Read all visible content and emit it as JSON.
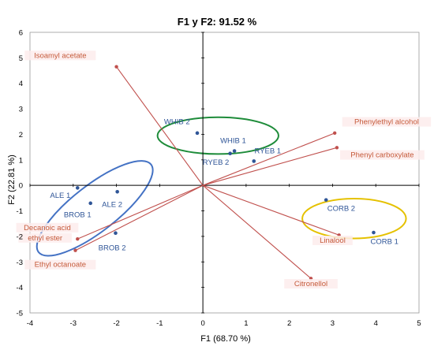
{
  "chart_data": {
    "type": "scatter",
    "title": "F1 y F2: 91.52 %",
    "xlabel": "F1 (68.70 %)",
    "ylabel": "F2 (22.81 %)",
    "xlim": [
      -4,
      5
    ],
    "ylim": [
      -5,
      6
    ],
    "xticks": [
      "-4",
      "-3",
      "-2",
      "-1",
      "0",
      "1",
      "2",
      "3",
      "4",
      "5"
    ],
    "yticks": [
      "-5",
      "-4",
      "-3",
      "-2",
      "-1",
      "0",
      "1",
      "2",
      "3",
      "4",
      "5",
      "6"
    ],
    "grid": false,
    "colors": {
      "observations": "#2f5597",
      "variables": "#c0504d",
      "variable_text": "#c55a3a",
      "ellipse_blue": "#4472c4",
      "ellipse_green": "#1e8c3a",
      "ellipse_yellow": "#e5c100",
      "axes": "#000000",
      "frame": "#9a9a9a"
    },
    "observations": [
      {
        "label": "WHIB 2",
        "x": -0.13,
        "y": 2.05,
        "lx": -0.6,
        "ly": 2.5
      },
      {
        "label": "WHIB 1",
        "x": 0.73,
        "y": 1.35,
        "lx": 0.7,
        "ly": 1.75
      },
      {
        "label": "RYEB 2",
        "x": 0.63,
        "y": 1.25,
        "lx": 0.3,
        "ly": 0.9
      },
      {
        "label": "RYEB 1",
        "x": 1.18,
        "y": 0.95,
        "lx": 1.5,
        "ly": 1.35
      },
      {
        "label": "ALE 1",
        "x": -2.9,
        "y": -0.1,
        "lx": -3.3,
        "ly": -0.4
      },
      {
        "label": "ALE 2",
        "x": -1.98,
        "y": -0.25,
        "lx": -2.1,
        "ly": -0.75
      },
      {
        "label": "BROB 1",
        "x": -2.6,
        "y": -0.7,
        "lx": -2.9,
        "ly": -1.15
      },
      {
        "label": "BROB 2",
        "x": -2.02,
        "y": -1.87,
        "lx": -2.1,
        "ly": -2.45
      },
      {
        "label": "CORB 2",
        "x": 2.85,
        "y": -0.57,
        "lx": 3.2,
        "ly": -0.9
      },
      {
        "label": "CORB 1",
        "x": 3.95,
        "y": -1.85,
        "lx": 4.2,
        "ly": -2.2
      }
    ],
    "variables": [
      {
        "label": "Isoamyl acetate",
        "x": -2.0,
        "y": 4.65,
        "lx": -3.3,
        "ly": 5.0,
        "bg": true
      },
      {
        "label": "Phenylethyl alcohol",
        "x": 3.05,
        "y": 2.05,
        "lx": 4.25,
        "ly": 2.4,
        "bg": true
      },
      {
        "label": "Phenyl carboxylate",
        "x": 3.1,
        "y": 1.48,
        "lx": 4.15,
        "ly": 1.1,
        "bg": true
      },
      {
        "label": "Decanoic acid",
        "x": -2.9,
        "y": -2.1,
        "lx": -3.6,
        "ly": -1.75,
        "bg": true
      },
      {
        "label": "ethyl ester",
        "x": null,
        "y": null,
        "lx": -3.65,
        "ly": -2.15,
        "bg": true
      },
      {
        "label": "Ethyl octanoate",
        "x": -2.95,
        "y": -2.55,
        "lx": -3.3,
        "ly": -3.2,
        "bg": true
      },
      {
        "label": "Linalool",
        "x": 3.15,
        "y": -1.95,
        "lx": 3.0,
        "ly": -2.25,
        "bg": true
      },
      {
        "label": "Citronellol",
        "x": 2.5,
        "y": -3.65,
        "lx": 2.5,
        "ly": -3.95,
        "bg": true
      }
    ],
    "ellipses": [
      {
        "color": "ellipse_green",
        "cx": 0.35,
        "cy": 1.95,
        "rx": 1.4,
        "ry": 0.72,
        "angle": 0
      },
      {
        "color": "ellipse_blue",
        "cx": -2.5,
        "cy": -0.9,
        "rx": 1.65,
        "ry": 0.9,
        "angle": -38
      },
      {
        "color": "ellipse_yellow",
        "cx": 3.5,
        "cy": -1.3,
        "rx": 1.2,
        "ry": 0.78,
        "angle": 0
      }
    ]
  }
}
